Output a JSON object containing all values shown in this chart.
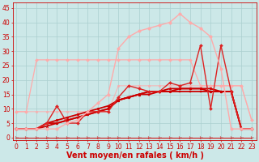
{
  "x": [
    0,
    1,
    2,
    3,
    4,
    5,
    6,
    7,
    8,
    9,
    10,
    11,
    12,
    13,
    14,
    15,
    16,
    17,
    18,
    19,
    20,
    21,
    22,
    23
  ],
  "background_color": "#cce8e8",
  "grid_color": "#aacfcf",
  "xlabel": "Vent moyen/en rafales ( km/h )",
  "xlabel_color": "#cc0000",
  "xlabel_fontsize": 7,
  "tick_color": "#cc0000",
  "tick_fontsize": 5.5,
  "ylim": [
    -1,
    47
  ],
  "xlim": [
    -0.3,
    23.5
  ],
  "yticks": [
    0,
    5,
    10,
    15,
    20,
    25,
    30,
    35,
    40,
    45
  ],
  "series": [
    {
      "name": "flat_arrows",
      "y": [
        0,
        0,
        0,
        0,
        0,
        0,
        0,
        0,
        0,
        0,
        0,
        0,
        0,
        0,
        0,
        0,
        0,
        0,
        0,
        0,
        0,
        0,
        0,
        0
      ],
      "color": "#cc0000",
      "linewidth": 0.7,
      "marker": "4",
      "markersize": 4,
      "alpha": 1.0
    },
    {
      "name": "light_flat_wide",
      "y": [
        9,
        9,
        27,
        27,
        27,
        27,
        27,
        27,
        27,
        27,
        27,
        27,
        27,
        27,
        27,
        27,
        27,
        27,
        18,
        18,
        18,
        18,
        18,
        6
      ],
      "color": "#ffaaaa",
      "linewidth": 0.9,
      "marker": "D",
      "markersize": 2.0,
      "alpha": 1.0
    },
    {
      "name": "light_declining",
      "y": [
        9,
        9,
        9,
        9,
        9,
        9,
        9,
        9,
        9,
        9,
        18,
        18,
        18,
        18,
        18,
        18,
        18,
        18,
        18,
        18,
        18,
        18,
        18,
        6
      ],
      "color": "#ffaaaa",
      "linewidth": 0.9,
      "marker": "o",
      "markersize": 2.0,
      "alpha": 0.7
    },
    {
      "name": "rising_main1",
      "y": [
        3,
        3,
        3,
        5,
        5,
        6,
        7,
        8,
        9,
        10,
        13,
        14,
        15,
        15,
        16,
        16,
        16,
        16,
        16,
        16,
        16,
        16,
        3,
        3
      ],
      "color": "#cc0000",
      "linewidth": 1.3,
      "marker": "s",
      "markersize": 2.0,
      "alpha": 1.0
    },
    {
      "name": "rising_main2",
      "y": [
        3,
        3,
        3,
        5,
        6,
        7,
        8,
        9,
        10,
        11,
        13,
        14,
        15,
        16,
        16,
        16,
        17,
        17,
        17,
        17,
        16,
        16,
        3,
        3
      ],
      "color": "#cc0000",
      "linewidth": 1.3,
      "marker": "o",
      "markersize": 2.0,
      "alpha": 1.0
    },
    {
      "name": "rising_main3",
      "y": [
        3,
        3,
        3,
        4,
        5,
        6,
        7,
        8,
        9,
        10,
        13,
        14,
        15,
        16,
        16,
        17,
        17,
        17,
        17,
        16,
        16,
        16,
        3,
        3
      ],
      "color": "#cc0000",
      "linewidth": 1.3,
      "marker": "^",
      "markersize": 2.0,
      "alpha": 1.0
    },
    {
      "name": "spiky_dark",
      "y": [
        3,
        3,
        3,
        5,
        11,
        5,
        5,
        9,
        9,
        9,
        14,
        18,
        17,
        16,
        16,
        19,
        18,
        19,
        32,
        10,
        32,
        16,
        3,
        3
      ],
      "color": "#dd2222",
      "linewidth": 1.0,
      "marker": "D",
      "markersize": 2.0,
      "alpha": 1.0
    },
    {
      "name": "big_peak",
      "y": [
        3,
        3,
        3,
        3,
        3,
        5,
        6,
        9,
        12,
        15,
        31,
        35,
        37,
        38,
        39,
        40,
        43,
        40,
        38,
        35,
        24,
        3,
        3,
        3
      ],
      "color": "#ffaaaa",
      "linewidth": 1.0,
      "marker": "o",
      "markersize": 2.5,
      "alpha": 1.0
    }
  ]
}
